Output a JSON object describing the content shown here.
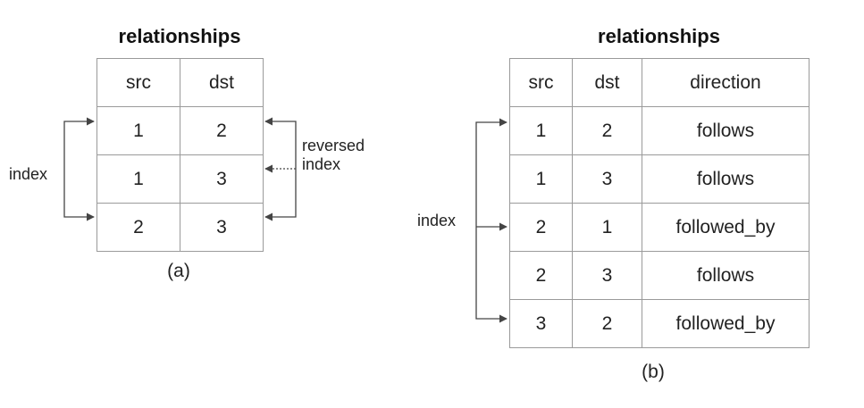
{
  "diagram_a": {
    "title": "relationships",
    "headers": [
      "src",
      "dst"
    ],
    "rows": [
      [
        "1",
        "2"
      ],
      [
        "1",
        "3"
      ],
      [
        "2",
        "3"
      ]
    ],
    "left_label": "index",
    "right_label_line1": "reversed",
    "right_label_line2": "index",
    "caption": "(a)"
  },
  "diagram_b": {
    "title": "relationships",
    "headers": [
      "src",
      "dst",
      "direction"
    ],
    "rows": [
      [
        "1",
        "2",
        "follows"
      ],
      [
        "1",
        "3",
        "follows"
      ],
      [
        "2",
        "1",
        "followed_by"
      ],
      [
        "2",
        "3",
        "follows"
      ],
      [
        "3",
        "2",
        "followed_by"
      ]
    ],
    "left_label": "index",
    "caption": "(b)"
  }
}
